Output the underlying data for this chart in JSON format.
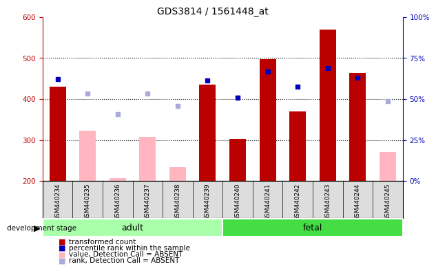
{
  "title": "GDS3814 / 1561448_at",
  "categories": [
    "GSM440234",
    "GSM440235",
    "GSM440236",
    "GSM440237",
    "GSM440238",
    "GSM440239",
    "GSM440240",
    "GSM440241",
    "GSM440242",
    "GSM440243",
    "GSM440244",
    "GSM440245"
  ],
  "red_values": [
    430,
    null,
    null,
    null,
    null,
    435,
    302,
    497,
    370,
    570,
    463,
    null
  ],
  "pink_values": [
    null,
    323,
    207,
    307,
    233,
    null,
    null,
    null,
    null,
    null,
    null,
    270
  ],
  "blue_sq": [
    448,
    null,
    null,
    null,
    null,
    445,
    403,
    467,
    430,
    475,
    452,
    null
  ],
  "lblue_sq": [
    null,
    413,
    363,
    413,
    383,
    null,
    403,
    null,
    null,
    null,
    null,
    395
  ],
  "ylim_left": [
    200,
    600
  ],
  "ylim_right": [
    0,
    100
  ],
  "yticks_left": [
    200,
    300,
    400,
    500,
    600
  ],
  "yticks_right": [
    0,
    25,
    50,
    75,
    100
  ],
  "ytick_right_labels": [
    "0%",
    "25%",
    "50%",
    "75%",
    "100%"
  ],
  "group_adult": [
    0,
    5
  ],
  "group_fetal": [
    6,
    11
  ],
  "red_color": "#BB0000",
  "pink_color": "#FFB6C1",
  "blue_color": "#0000BB",
  "lblue_color": "#AAAADD",
  "bg_gray": "#DDDDDD",
  "adult_color": "#AAFFAA",
  "fetal_color": "#44DD44",
  "grid_lines": [
    300,
    400,
    500
  ],
  "legend_items": [
    {
      "color": "#BB0000",
      "label": "transformed count"
    },
    {
      "color": "#0000BB",
      "label": "percentile rank within the sample"
    },
    {
      "color": "#FFB6C1",
      "label": "value, Detection Call = ABSENT"
    },
    {
      "color": "#AAAADD",
      "label": "rank, Detection Call = ABSENT"
    }
  ]
}
